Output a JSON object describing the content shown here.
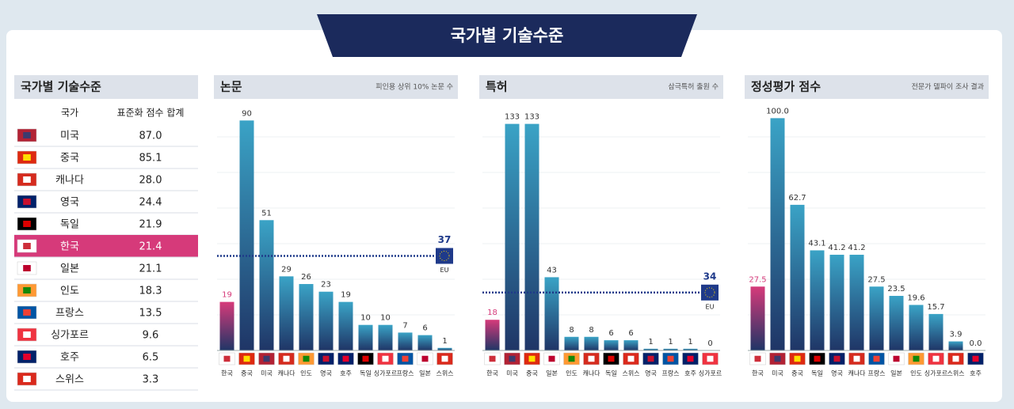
{
  "header": {
    "title": "국가별 기술수준"
  },
  "table": {
    "title": "국가별 기술수준",
    "columns": [
      "국가",
      "표준화 점수 합계"
    ],
    "highlight_row": 5,
    "highlight_color": "#d63a7a",
    "rows": [
      {
        "country": "미국",
        "score": "87.0",
        "flag": [
          "#b22234",
          "#3c3b6e"
        ]
      },
      {
        "country": "중국",
        "score": "85.1",
        "flag": [
          "#de2910",
          "#ffde00"
        ]
      },
      {
        "country": "캐나다",
        "score": "28.0",
        "flag": [
          "#d52b1e",
          "#ffffff"
        ]
      },
      {
        "country": "영국",
        "score": "24.4",
        "flag": [
          "#012169",
          "#c8102e"
        ]
      },
      {
        "country": "독일",
        "score": "21.9",
        "flag": [
          "#000000",
          "#dd0000"
        ]
      },
      {
        "country": "한국",
        "score": "21.4",
        "flag": [
          "#ffffff",
          "#cd2e3a"
        ]
      },
      {
        "country": "일본",
        "score": "21.1",
        "flag": [
          "#ffffff",
          "#bc002d"
        ]
      },
      {
        "country": "인도",
        "score": "18.3",
        "flag": [
          "#ff9933",
          "#138808"
        ]
      },
      {
        "country": "프랑스",
        "score": "13.5",
        "flag": [
          "#0055a4",
          "#ef4135"
        ]
      },
      {
        "country": "싱가포르",
        "score": "9.6",
        "flag": [
          "#ef3340",
          "#ffffff"
        ]
      },
      {
        "country": "호주",
        "score": "6.5",
        "flag": [
          "#012169",
          "#e4002b"
        ]
      },
      {
        "country": "스위스",
        "score": "3.3",
        "flag": [
          "#da291c",
          "#ffffff"
        ]
      }
    ]
  },
  "chart_data": [
    {
      "type": "bar",
      "title": "논문",
      "subtitle": "피인용 상위 10% 논문 수",
      "categories": [
        "한국",
        "중국",
        "미국",
        "캐나다",
        "인도",
        "영국",
        "호주",
        "독일",
        "싱가포르",
        "프랑스",
        "일본",
        "스위스"
      ],
      "values": [
        19,
        90,
        51,
        29,
        26,
        23,
        19,
        10,
        10,
        7,
        6,
        1
      ],
      "color": "#3aa3c6",
      "highlight_index": 0,
      "highlight_color": "#d63a7a",
      "ylim": [
        0,
        100
      ],
      "reference": {
        "value": 37,
        "label": "EU"
      }
    },
    {
      "type": "bar",
      "title": "특허",
      "subtitle": "삼극특허 출원 수",
      "categories": [
        "한국",
        "미국",
        "중국",
        "일본",
        "인도",
        "캐나다",
        "독일",
        "스위스",
        "영국",
        "프랑스",
        "호주",
        "싱가포르"
      ],
      "values": [
        18,
        133,
        133,
        43,
        8,
        8,
        6,
        6,
        1,
        1,
        1,
        0
      ],
      "color": "#3aa3c6",
      "highlight_index": 0,
      "highlight_color": "#d63a7a",
      "ylim": [
        0,
        150
      ],
      "reference": {
        "value": 34,
        "label": "EU"
      }
    },
    {
      "type": "bar",
      "title": "정성평가 점수",
      "subtitle": "전문가 델파이 조사 결과",
      "categories": [
        "한국",
        "미국",
        "중국",
        "독일",
        "영국",
        "캐나다",
        "프랑스",
        "일본",
        "인도",
        "싱가포르",
        "스위스",
        "호주"
      ],
      "values": [
        27.5,
        100,
        62.7,
        43.1,
        41.2,
        41.2,
        27.5,
        23.5,
        19.6,
        15.7,
        3.9,
        0
      ],
      "value_labels": [
        "27.5",
        "100.0",
        "62.7",
        "43.1",
        "41.2",
        "41.2",
        "27.5",
        "23.5",
        "19.6",
        "15.7",
        "3.9",
        "0.0"
      ],
      "color": "#3aa3c6",
      "highlight_index": 0,
      "highlight_color": "#d63a7a",
      "ylim": [
        0,
        110
      ]
    }
  ]
}
